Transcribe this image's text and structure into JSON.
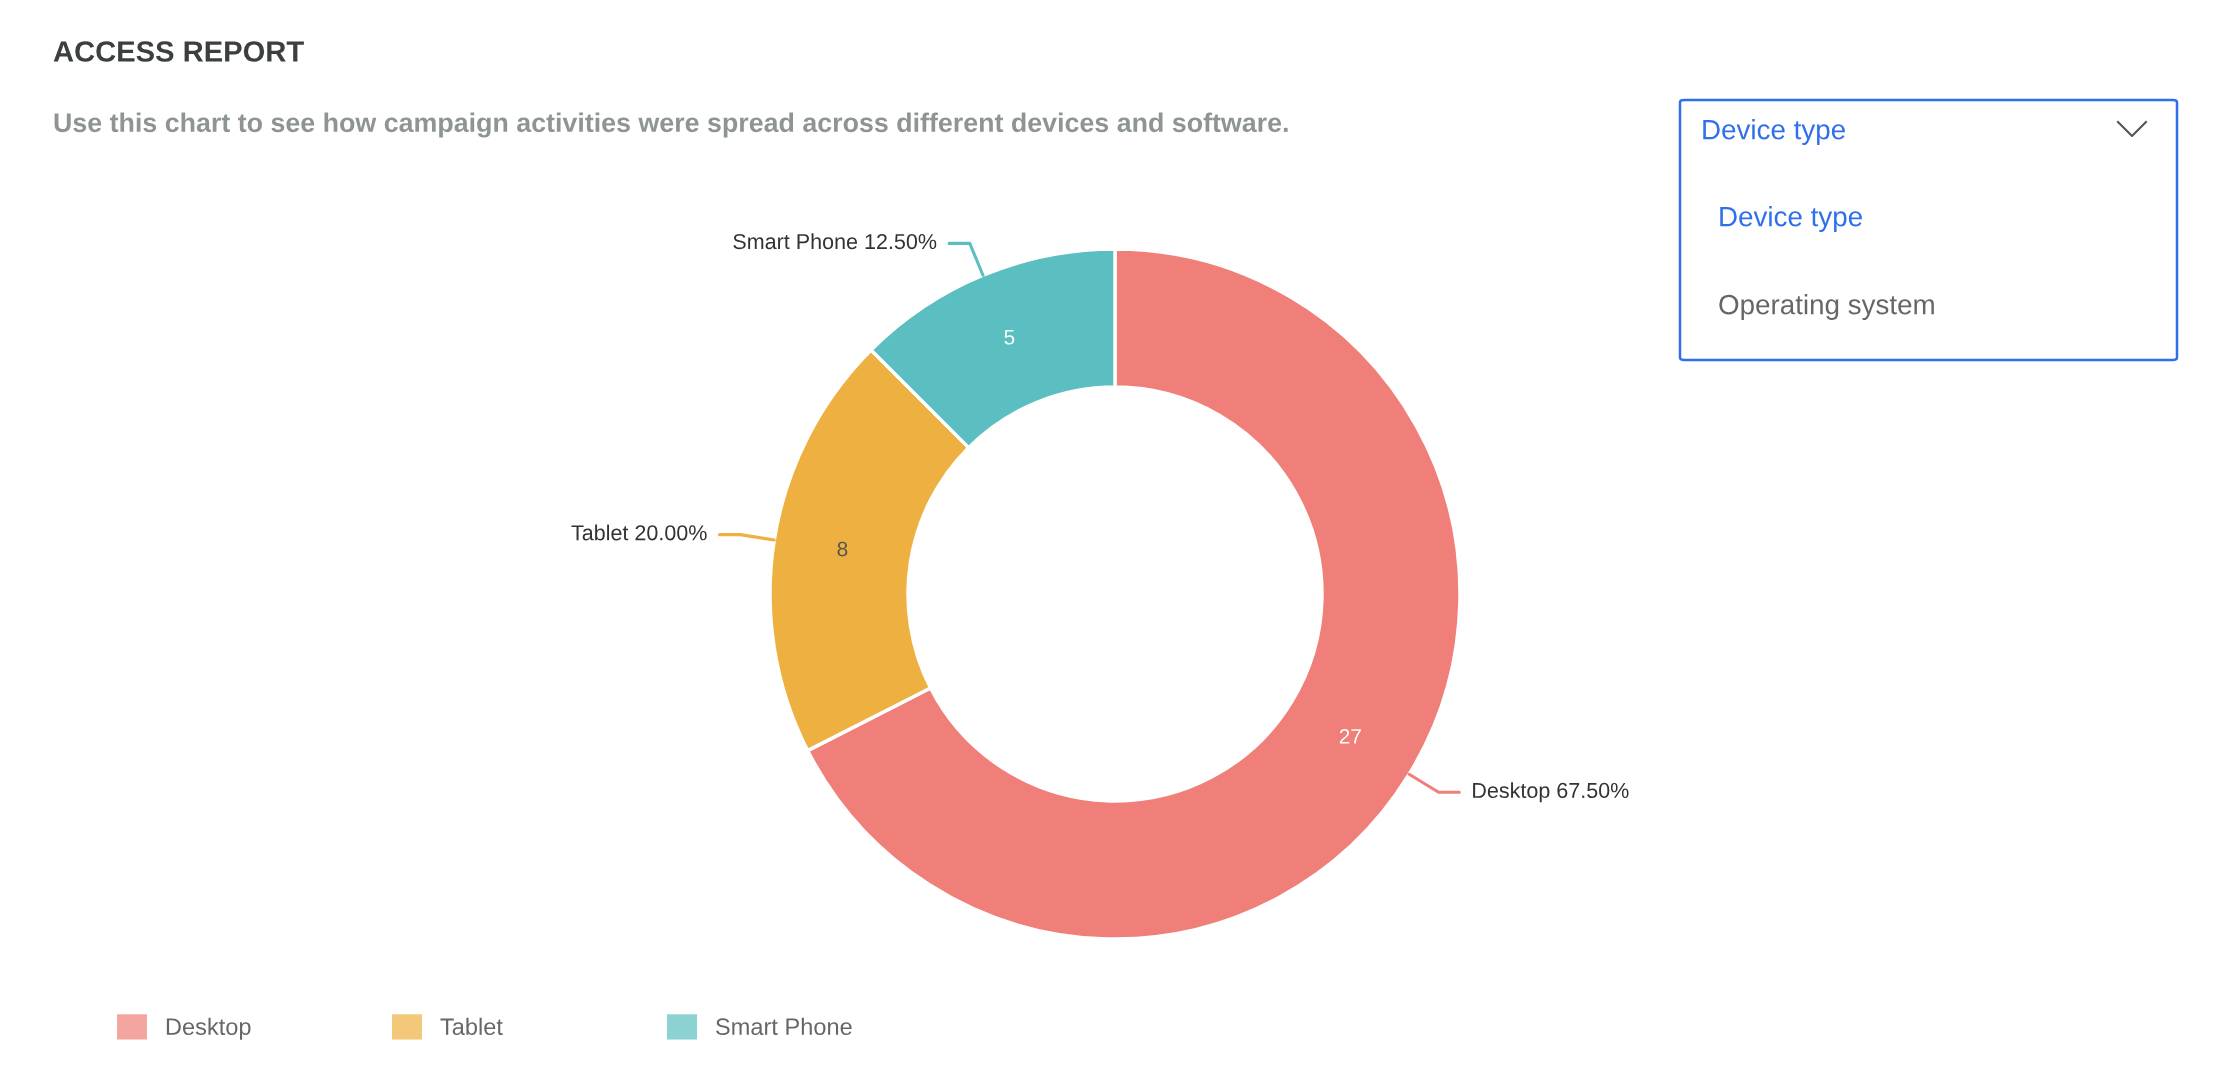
{
  "chart_data": {
    "type": "donut",
    "title": "ACCESS REPORT",
    "subtitle": "Use this chart to see how campaign activities were spread across different devices and software.",
    "categories": [
      "Desktop",
      "Tablet",
      "Smart Phone"
    ],
    "values": [
      27,
      8,
      5
    ],
    "colors": [
      "#ef7f78",
      "#eeb040",
      "#5bbfc1"
    ],
    "value_labels": [
      "27",
      "8",
      "5"
    ],
    "legend": "bottom left",
    "annotations": [
      "Device type",
      "Device type",
      "Operating system",
      {
        "text": "Desktop 67.50%",
        "x": "Desktop"
      },
      {
        "text": "Tablet 20.00%",
        "x": "Tablet"
      },
      {
        "text": "Smart Phone 12.50%",
        "x": "Smart Phone"
      }
    ]
  }
}
